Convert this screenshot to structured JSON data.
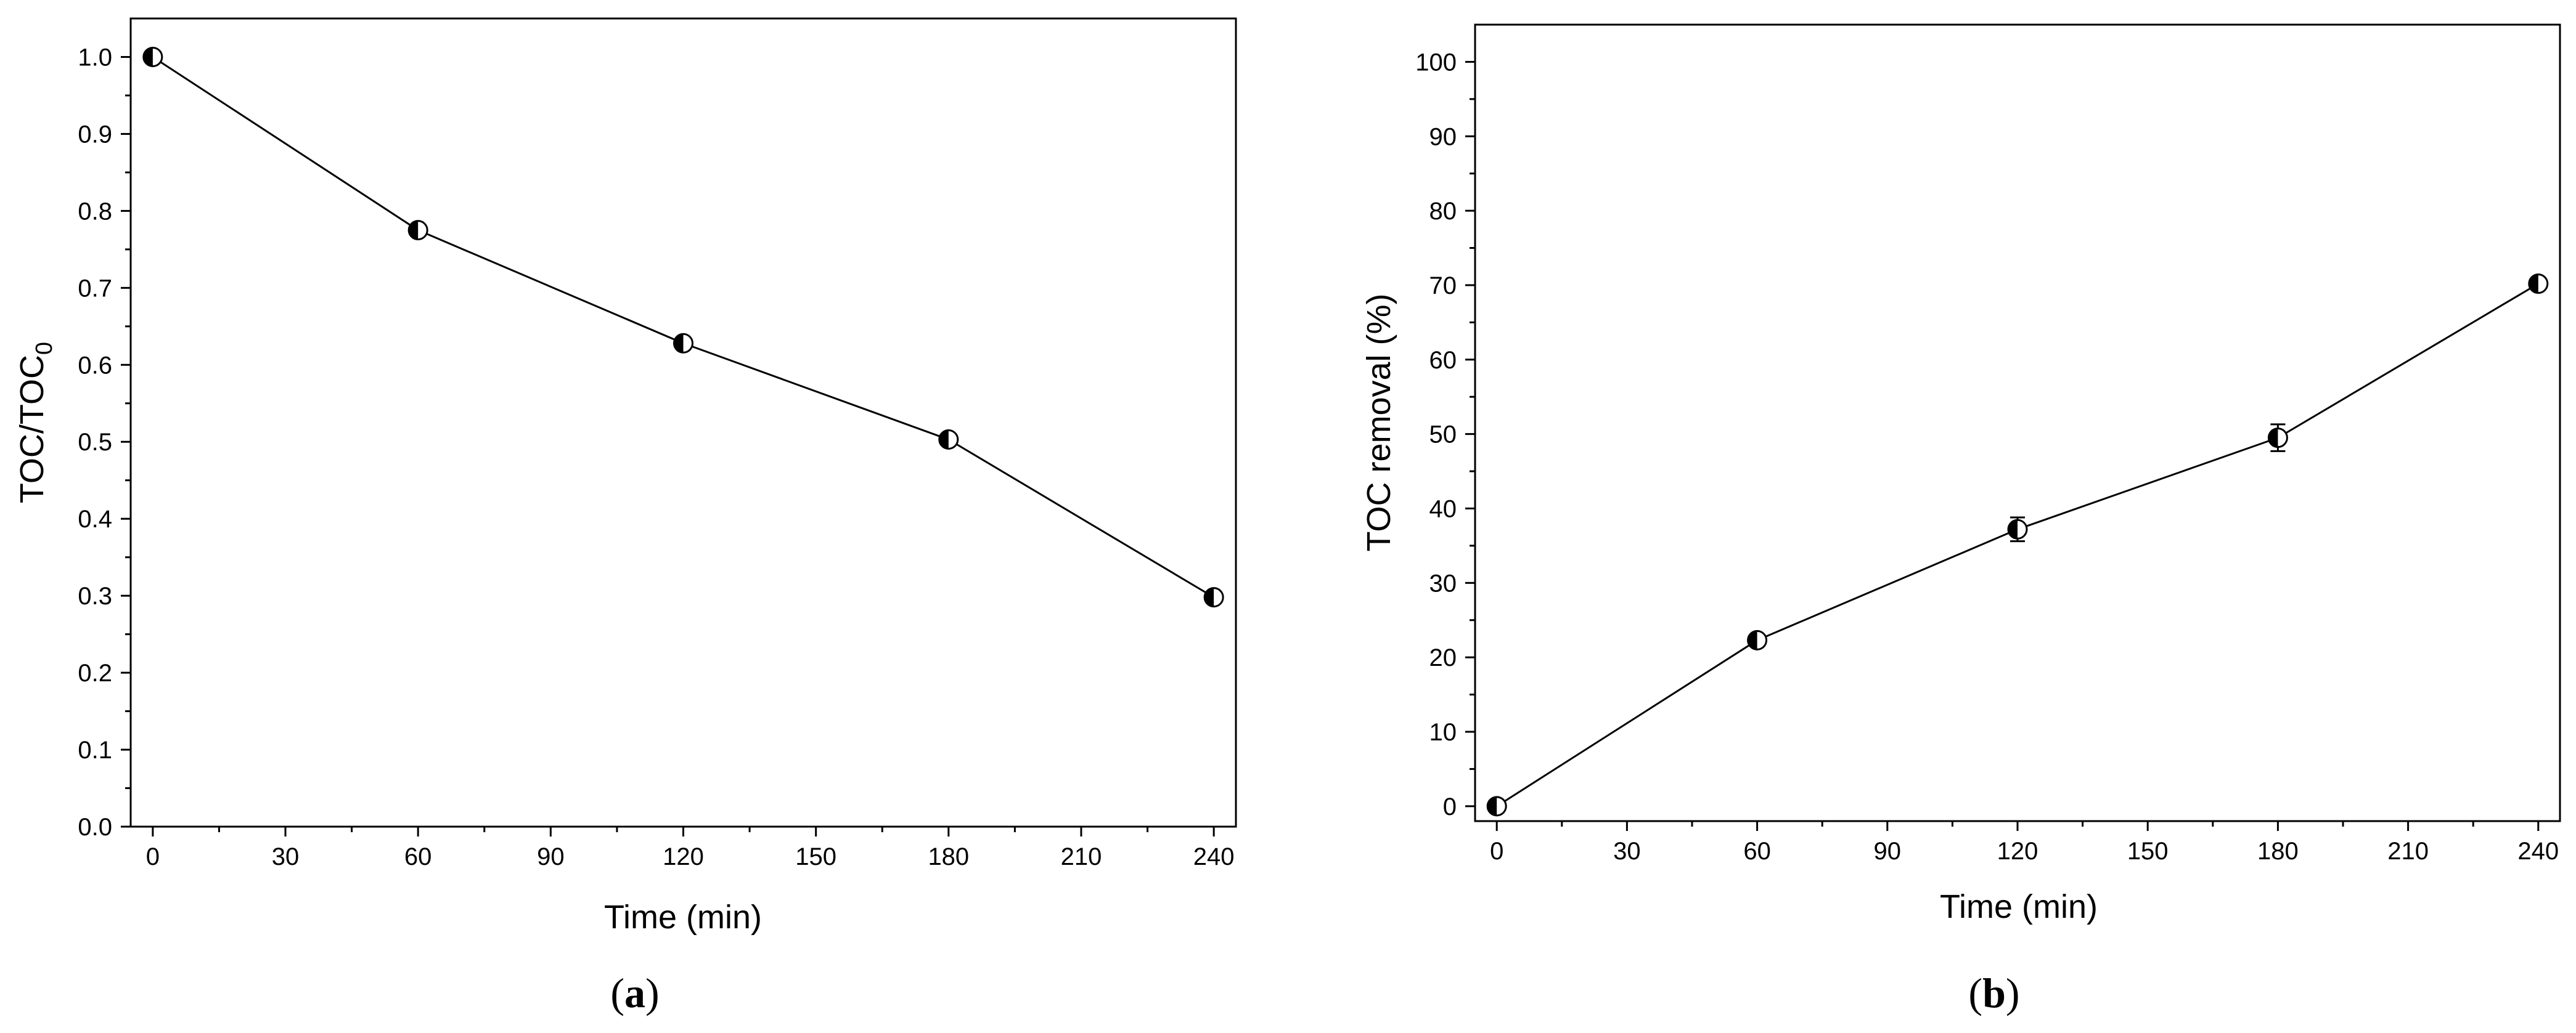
{
  "chart_data": [
    {
      "type": "line",
      "panel_label": "a",
      "xlabel": "Time (min)",
      "ylabel": "TOC/TOC",
      "ylabel_sub": "0",
      "x": [
        0,
        60,
        120,
        180,
        240
      ],
      "y": [
        1.0,
        0.775,
        0.628,
        0.503,
        0.298
      ],
      "xlim": [
        -5,
        245
      ],
      "ylim": [
        0.0,
        1.05
      ],
      "xticks": [
        0,
        30,
        60,
        90,
        120,
        150,
        180,
        210,
        240
      ],
      "yticks": [
        0.0,
        0.1,
        0.2,
        0.3,
        0.4,
        0.5,
        0.6,
        0.7,
        0.8,
        0.9,
        1.0
      ],
      "ytick_labels": [
        "0.0",
        "0.1",
        "0.2",
        "0.3",
        "0.4",
        "0.5",
        "0.6",
        "0.7",
        "0.8",
        "0.9",
        "1.0"
      ],
      "error": [
        0,
        0,
        0,
        0,
        0
      ],
      "marker": "half-filled-circle",
      "grid": false
    },
    {
      "type": "line",
      "panel_label": "b",
      "xlabel": "Time (min)",
      "ylabel": "TOC removal (%)",
      "x": [
        0,
        60,
        120,
        180,
        240
      ],
      "y": [
        0,
        22.3,
        37.2,
        49.5,
        70.2
      ],
      "xlim": [
        -5,
        245
      ],
      "ylim": [
        -2,
        105
      ],
      "xticks": [
        0,
        30,
        60,
        90,
        120,
        150,
        180,
        210,
        240
      ],
      "yticks": [
        0,
        10,
        20,
        30,
        40,
        50,
        60,
        70,
        80,
        90,
        100
      ],
      "ytick_labels": [
        "0",
        "10",
        "20",
        "30",
        "40",
        "50",
        "60",
        "70",
        "80",
        "90",
        "100"
      ],
      "error": [
        0,
        0.8,
        1.6,
        1.8,
        0.8
      ],
      "marker": "half-filled-circle",
      "grid": false
    }
  ]
}
